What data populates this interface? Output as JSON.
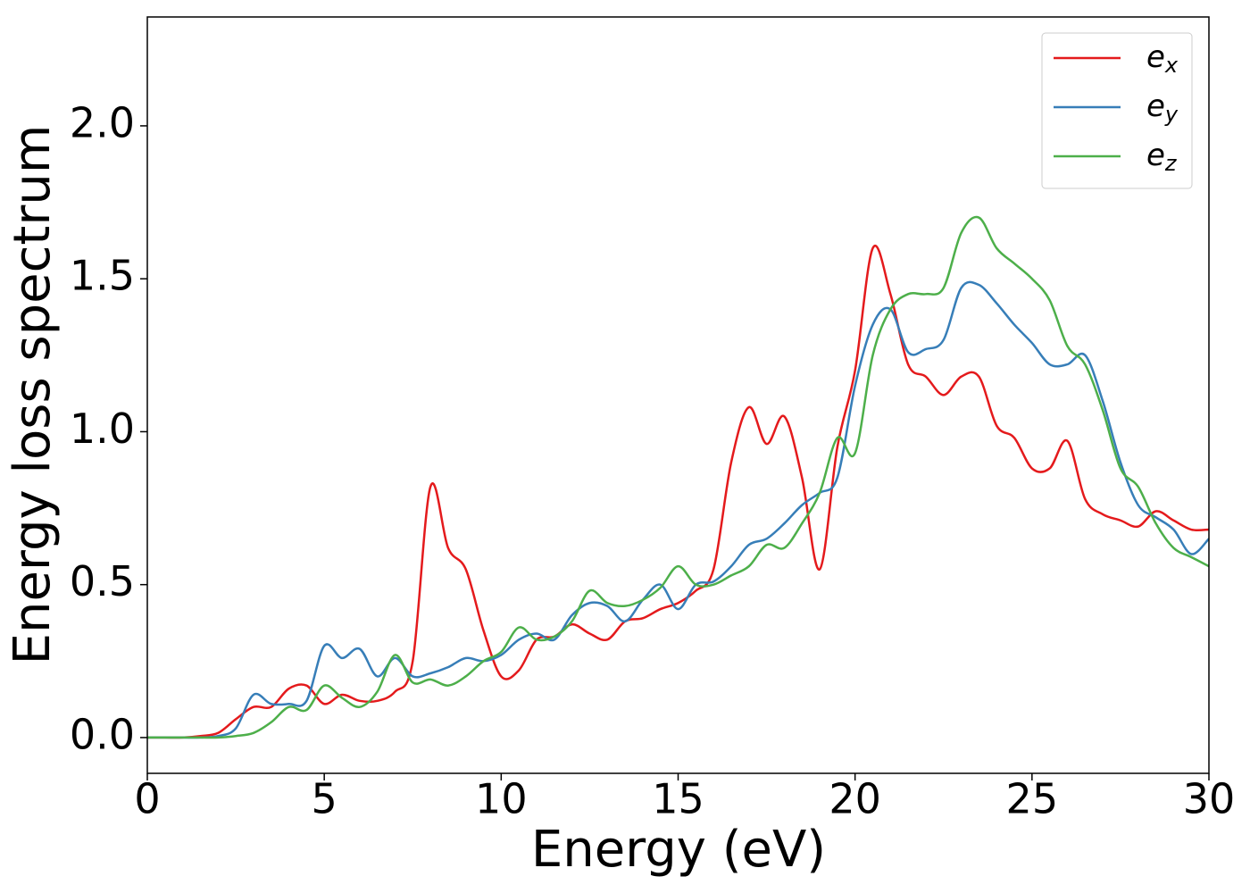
{
  "chart_data": {
    "type": "line",
    "x_label": "Energy (eV)",
    "y_label": "Energy loss spectrum",
    "x": [
      0,
      0.5,
      1,
      1.5,
      2,
      2.5,
      3,
      3.5,
      4,
      4.5,
      5,
      5.5,
      6,
      6.5,
      7,
      7.5,
      8,
      8.5,
      9,
      9.5,
      10,
      10.5,
      11,
      11.5,
      12,
      12.5,
      13,
      13.5,
      14,
      14.5,
      15,
      15.5,
      16,
      16.5,
      17,
      17.5,
      18,
      18.5,
      19,
      19.5,
      20,
      20.5,
      21,
      21.5,
      22,
      22.5,
      23,
      23.5,
      24,
      24.5,
      25,
      25.5,
      26,
      26.5,
      27,
      27.5,
      28,
      28.5,
      29,
      29.5,
      30
    ],
    "series": [
      {
        "name": "e_x",
        "color": "#e41a1c",
        "values": [
          0,
          0,
          0,
          0.005,
          0.015,
          0.06,
          0.1,
          0.1,
          0.16,
          0.17,
          0.11,
          0.14,
          0.12,
          0.12,
          0.15,
          0.25,
          0.82,
          0.62,
          0.55,
          0.35,
          0.2,
          0.22,
          0.32,
          0.33,
          0.37,
          0.34,
          0.32,
          0.38,
          0.39,
          0.42,
          0.44,
          0.48,
          0.55,
          0.9,
          1.08,
          0.96,
          1.05,
          0.85,
          0.55,
          0.95,
          1.2,
          1.6,
          1.45,
          1.22,
          1.18,
          1.12,
          1.18,
          1.18,
          1.02,
          0.98,
          0.88,
          0.88,
          0.97,
          0.78,
          0.73,
          0.71,
          0.69,
          0.74,
          0.71,
          0.68,
          0.68
        ]
      },
      {
        "name": "e_y",
        "color": "#377eb8",
        "values": [
          0,
          0,
          0,
          0,
          0.005,
          0.03,
          0.14,
          0.11,
          0.11,
          0.12,
          0.3,
          0.26,
          0.29,
          0.2,
          0.26,
          0.2,
          0.21,
          0.23,
          0.26,
          0.25,
          0.27,
          0.32,
          0.34,
          0.32,
          0.4,
          0.44,
          0.43,
          0.38,
          0.45,
          0.5,
          0.42,
          0.5,
          0.51,
          0.56,
          0.63,
          0.65,
          0.7,
          0.76,
          0.8,
          0.85,
          1.15,
          1.35,
          1.4,
          1.26,
          1.27,
          1.3,
          1.47,
          1.48,
          1.42,
          1.35,
          1.29,
          1.22,
          1.22,
          1.25,
          1.1,
          0.9,
          0.76,
          0.72,
          0.68,
          0.6,
          0.65
        ]
      },
      {
        "name": "e_z",
        "color": "#4daf4a",
        "values": [
          0,
          0,
          0,
          0,
          0,
          0.005,
          0.015,
          0.05,
          0.1,
          0.09,
          0.17,
          0.13,
          0.1,
          0.15,
          0.27,
          0.18,
          0.19,
          0.17,
          0.2,
          0.25,
          0.28,
          0.36,
          0.32,
          0.33,
          0.38,
          0.48,
          0.44,
          0.43,
          0.45,
          0.49,
          0.56,
          0.5,
          0.5,
          0.53,
          0.56,
          0.63,
          0.62,
          0.7,
          0.8,
          0.98,
          0.93,
          1.25,
          1.4,
          1.45,
          1.45,
          1.47,
          1.65,
          1.7,
          1.6,
          1.55,
          1.5,
          1.43,
          1.28,
          1.22,
          1.07,
          0.88,
          0.82,
          0.7,
          0.62,
          0.59,
          0.56
        ]
      }
    ],
    "xlim": [
      0,
      30
    ],
    "ylim": [
      -0.117,
      2.356
    ],
    "xticks": [
      0,
      5,
      10,
      15,
      20,
      25,
      30
    ],
    "yticks": [
      {
        "value": 0,
        "label": "0.0"
      },
      0.5,
      {
        "value": 1,
        "label": "1.0"
      },
      1.5,
      {
        "value": 2,
        "label": "2.0"
      }
    ],
    "grid": false,
    "legend": "upper right"
  }
}
